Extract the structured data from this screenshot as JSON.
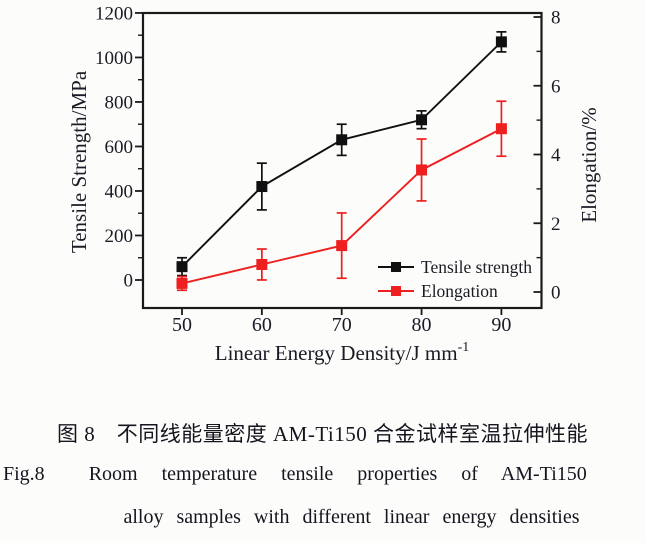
{
  "figure": {
    "caption_zh": "图 8　不同线能量密度 AM-Ti150 合金试样室温拉伸性能",
    "caption_fig_label": "Fig.8",
    "caption_en_line1": "Room temperature tensile properties of AM-Ti150",
    "caption_en_line2": "alloy samples with different linear energy densities"
  },
  "chart_data": {
    "type": "line",
    "x": [
      50,
      60,
      70,
      80,
      90
    ],
    "xlabel": {
      "text": "Linear Energy Density/J mm",
      "sup": "-1"
    },
    "ylabel_left": "Tensile Strength/MPa",
    "ylabel_right": "Elongation/%",
    "xlim": [
      45,
      95
    ],
    "ylim_left": [
      -100,
      1200
    ],
    "ylim_right": [
      -0.45,
      8.1
    ],
    "xticks": [
      50,
      60,
      70,
      80,
      90
    ],
    "yticks_left": [
      0,
      200,
      400,
      600,
      800,
      1000,
      1200
    ],
    "yticks_left_minor": [
      100,
      300,
      500,
      700,
      900,
      1100
    ],
    "yticks_right": [
      0,
      2,
      4,
      6,
      8
    ],
    "yticks_right_minor": [
      1,
      3,
      5,
      7
    ],
    "grid": false,
    "legend_position": "bottom-right-inside",
    "series": [
      {
        "name": "Tensile strength",
        "axis": "left",
        "color": "#101010",
        "marker": "square",
        "values": [
          60,
          420,
          630,
          720,
          1070
        ],
        "errors": [
          40,
          105,
          70,
          40,
          45
        ]
      },
      {
        "name": "Elongation",
        "axis": "right",
        "color": "#ed1f1f",
        "marker": "square",
        "values": [
          0.25,
          0.8,
          1.35,
          3.55,
          4.75
        ],
        "errors": [
          0.2,
          0.45,
          0.95,
          0.9,
          0.8
        ]
      }
    ]
  }
}
